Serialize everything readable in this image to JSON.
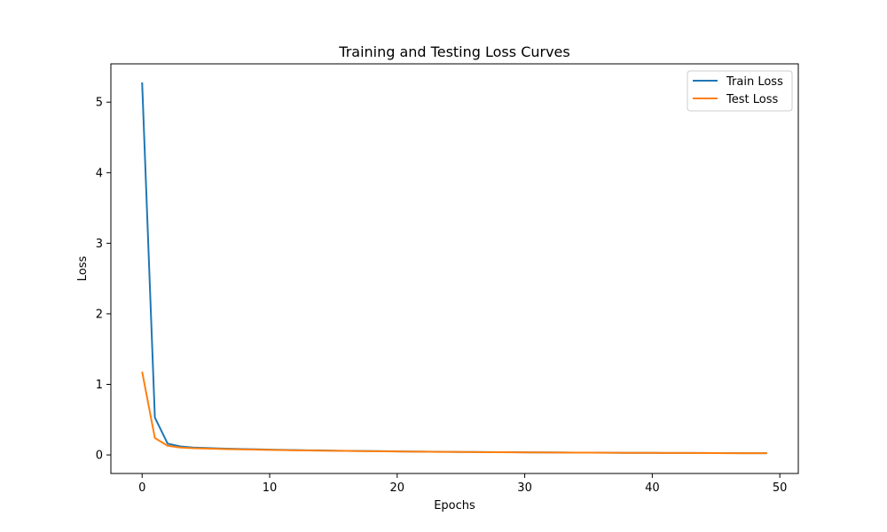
{
  "chart_data": {
    "type": "line",
    "title": "Training and Testing Loss Curves",
    "xlabel": "Epochs",
    "ylabel": "Loss",
    "xlim": [
      -2.45,
      51.45
    ],
    "ylim": [
      -0.263,
      5.543
    ],
    "xticks": [
      0,
      10,
      20,
      30,
      40,
      50
    ],
    "yticks": [
      0,
      1,
      2,
      3,
      4,
      5
    ],
    "grid": false,
    "legend_position": "top-right",
    "x": [
      0,
      1,
      2,
      3,
      4,
      5,
      6,
      7,
      8,
      9,
      10,
      11,
      12,
      13,
      14,
      15,
      16,
      17,
      18,
      19,
      20,
      21,
      22,
      23,
      24,
      25,
      26,
      27,
      28,
      29,
      30,
      31,
      32,
      33,
      34,
      35,
      36,
      37,
      38,
      39,
      40,
      41,
      42,
      43,
      44,
      45,
      46,
      47,
      48,
      49
    ],
    "series": [
      {
        "name": "Train Loss",
        "color": "#1f77b4",
        "values": [
          5.28,
          0.53,
          0.16,
          0.12,
          0.105,
          0.098,
          0.092,
          0.087,
          0.083,
          0.079,
          0.075,
          0.072,
          0.069,
          0.066,
          0.063,
          0.06,
          0.058,
          0.056,
          0.054,
          0.052,
          0.05,
          0.048,
          0.046,
          0.045,
          0.043,
          0.042,
          0.041,
          0.04,
          0.039,
          0.038,
          0.037,
          0.036,
          0.035,
          0.034,
          0.033,
          0.033,
          0.032,
          0.031,
          0.03,
          0.03,
          0.029,
          0.028,
          0.028,
          0.027,
          0.027,
          0.026,
          0.026,
          0.025,
          0.025,
          0.024
        ]
      },
      {
        "name": "Test Loss",
        "color": "#ff7f0e",
        "values": [
          1.18,
          0.24,
          0.13,
          0.105,
          0.095,
          0.09,
          0.085,
          0.081,
          0.078,
          0.075,
          0.072,
          0.069,
          0.066,
          0.064,
          0.061,
          0.059,
          0.057,
          0.055,
          0.053,
          0.051,
          0.049,
          0.047,
          0.046,
          0.044,
          0.043,
          0.042,
          0.04,
          0.039,
          0.038,
          0.037,
          0.036,
          0.035,
          0.034,
          0.034,
          0.033,
          0.032,
          0.031,
          0.031,
          0.03,
          0.029,
          0.029,
          0.028,
          0.028,
          0.027,
          0.026,
          0.026,
          0.025,
          0.025,
          0.025,
          0.024
        ]
      }
    ]
  }
}
